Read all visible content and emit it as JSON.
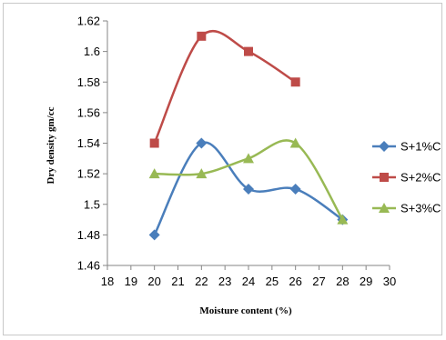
{
  "chart_data": {
    "type": "line",
    "xlabel": "Moisture content  (%)",
    "ylabel": "Dry density gm/cc",
    "xlim": [
      18,
      30
    ],
    "ylim": [
      1.46,
      1.62
    ],
    "x_ticks": [
      "18",
      "19",
      "20",
      "21",
      "22",
      "23",
      "24",
      "25",
      "26",
      "27",
      "28",
      "29",
      "30"
    ],
    "y_ticks": [
      "1.46",
      "1.48",
      "1.5",
      "1.52",
      "1.54",
      "1.56",
      "1.58",
      "1.6",
      "1.62"
    ],
    "grid": false,
    "smooth": true,
    "legend_position": "right",
    "series": [
      {
        "name": "S+1%C",
        "color": "#4a7ebb",
        "marker": "diamond",
        "x": [
          20,
          22,
          24,
          26,
          28
        ],
        "values": [
          1.48,
          1.54,
          1.51,
          1.51,
          1.49
        ]
      },
      {
        "name": "S+2%C",
        "color": "#be4b48",
        "marker": "square",
        "x": [
          20,
          22,
          24,
          26
        ],
        "values": [
          1.54,
          1.61,
          1.6,
          1.58
        ]
      },
      {
        "name": "S+3%C",
        "color": "#98b954",
        "marker": "triangle",
        "x": [
          20,
          22,
          24,
          26,
          28
        ],
        "values": [
          1.52,
          1.52,
          1.53,
          1.54,
          1.49
        ]
      }
    ]
  }
}
